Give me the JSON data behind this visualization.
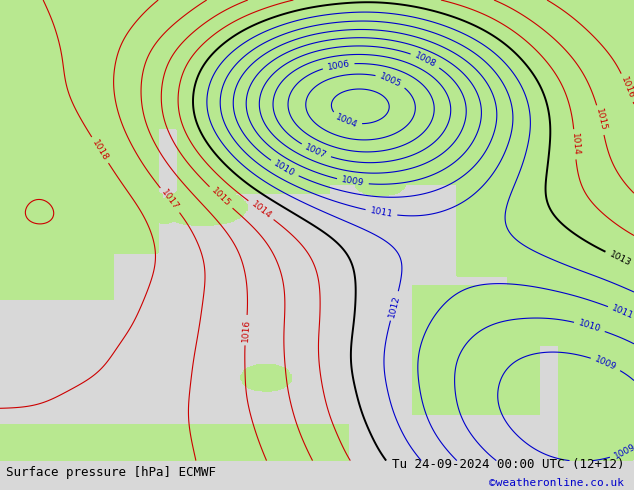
{
  "title_left": "Surface pressure [hPa] ECMWF",
  "title_right": "Tu 24-09-2024 00:00 UTC (12+12)",
  "credit": "©weatheronline.co.uk",
  "bg_color": "#d8d8d8",
  "land_color": "#b8e890",
  "sea_color": "#d8d8d8",
  "contour_color_red": "#cc0000",
  "contour_color_blue": "#0000cc",
  "contour_color_black": "#000000",
  "contour_color_gray": "#888888",
  "label_fontsize": 6.5,
  "footer_fontsize": 9
}
